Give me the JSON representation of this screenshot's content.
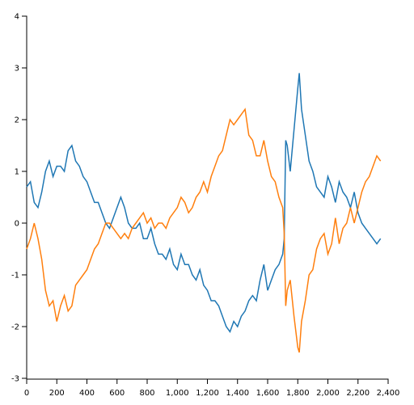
{
  "chart_data": {
    "type": "line",
    "x": [
      0,
      25,
      50,
      75,
      100,
      125,
      150,
      175,
      200,
      225,
      250,
      275,
      300,
      325,
      350,
      375,
      400,
      425,
      450,
      475,
      500,
      525,
      550,
      575,
      600,
      625,
      650,
      675,
      700,
      725,
      750,
      775,
      800,
      825,
      850,
      875,
      900,
      925,
      950,
      975,
      1000,
      1025,
      1050,
      1075,
      1100,
      1125,
      1150,
      1175,
      1200,
      1225,
      1250,
      1275,
      1300,
      1325,
      1350,
      1375,
      1400,
      1425,
      1450,
      1475,
      1500,
      1525,
      1550,
      1575,
      1600,
      1625,
      1650,
      1675,
      1700,
      1710,
      1720,
      1730,
      1750,
      1775,
      1800,
      1810,
      1825,
      1850,
      1875,
      1900,
      1925,
      1950,
      1975,
      2000,
      2025,
      2050,
      2075,
      2100,
      2125,
      2150,
      2175,
      2200,
      2225,
      2250,
      2275,
      2300,
      2325,
      2350
    ],
    "series": [
      {
        "color": "#1f77b4",
        "values": [
          0.7,
          0.8,
          0.4,
          0.3,
          0.6,
          1.0,
          1.2,
          0.9,
          1.1,
          1.1,
          1.0,
          1.4,
          1.5,
          1.2,
          1.1,
          0.9,
          0.8,
          0.6,
          0.4,
          0.4,
          0.2,
          0.0,
          -0.1,
          0.1,
          0.3,
          0.5,
          0.3,
          0.0,
          -0.1,
          -0.1,
          0.0,
          -0.3,
          -0.3,
          -0.1,
          -0.4,
          -0.6,
          -0.6,
          -0.7,
          -0.5,
          -0.8,
          -0.9,
          -0.6,
          -0.8,
          -0.8,
          -1.0,
          -1.1,
          -0.9,
          -1.2,
          -1.3,
          -1.5,
          -1.5,
          -1.6,
          -1.8,
          -2.0,
          -2.1,
          -1.9,
          -2.0,
          -1.8,
          -1.7,
          -1.5,
          -1.4,
          -1.5,
          -1.1,
          -0.8,
          -1.3,
          -1.1,
          -0.9,
          -0.8,
          -0.6,
          -0.3,
          1.6,
          1.5,
          1.0,
          1.8,
          2.6,
          2.9,
          2.2,
          1.7,
          1.2,
          1.0,
          0.7,
          0.6,
          0.5,
          0.9,
          0.7,
          0.4,
          0.8,
          0.6,
          0.5,
          0.3,
          0.6,
          0.2,
          0.0,
          -0.1,
          -0.2,
          -0.3,
          -0.4,
          -0.3
        ]
      },
      {
        "color": "#ff7f0e",
        "values": [
          -0.5,
          -0.3,
          0.0,
          -0.3,
          -0.7,
          -1.3,
          -1.6,
          -1.5,
          -1.9,
          -1.6,
          -1.4,
          -1.7,
          -1.6,
          -1.2,
          -1.1,
          -1.0,
          -0.9,
          -0.7,
          -0.5,
          -0.4,
          -0.2,
          0.0,
          0.0,
          -0.1,
          -0.2,
          -0.3,
          -0.2,
          -0.3,
          -0.1,
          0.0,
          0.1,
          0.2,
          0.0,
          0.1,
          -0.1,
          0.0,
          0.0,
          -0.1,
          0.1,
          0.2,
          0.3,
          0.5,
          0.4,
          0.2,
          0.3,
          0.5,
          0.6,
          0.8,
          0.6,
          0.9,
          1.1,
          1.3,
          1.4,
          1.7,
          2.0,
          1.9,
          2.0,
          2.1,
          2.2,
          1.7,
          1.6,
          1.3,
          1.3,
          1.6,
          1.2,
          0.9,
          0.8,
          0.5,
          0.3,
          -0.2,
          -1.6,
          -1.3,
          -1.1,
          -1.8,
          -2.4,
          -2.5,
          -1.9,
          -1.5,
          -1.0,
          -0.9,
          -0.5,
          -0.3,
          -0.2,
          -0.6,
          -0.4,
          0.1,
          -0.4,
          -0.1,
          0.0,
          0.3,
          0.0,
          0.3,
          0.6,
          0.8,
          0.9,
          1.1,
          1.3,
          1.2
        ]
      }
    ],
    "xlim": [
      0,
      2400
    ],
    "xticks": [
      0,
      200,
      400,
      600,
      800,
      {
        "value": 1000,
        "label": "1,000"
      },
      {
        "value": 1200,
        "label": "1,200"
      },
      {
        "value": 1400,
        "label": "1,400"
      },
      {
        "value": 1600,
        "label": "1,600"
      },
      {
        "value": 1800,
        "label": "1,800"
      },
      {
        "value": 2000,
        "label": "2,000"
      },
      {
        "value": 2200,
        "label": "2,200"
      },
      {
        "value": 2400,
        "label": "2,400"
      }
    ],
    "ylim": [
      -3,
      4
    ],
    "yticks": [
      -3,
      -2,
      -1,
      0,
      1,
      2,
      3,
      4
    ]
  }
}
